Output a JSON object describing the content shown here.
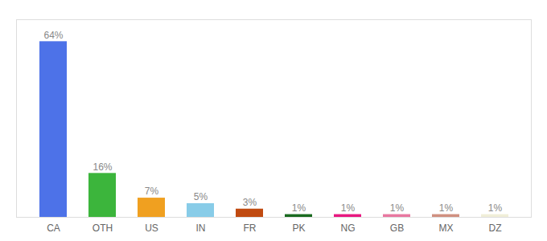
{
  "chart_data": {
    "type": "bar",
    "categories": [
      "CA",
      "OTH",
      "US",
      "IN",
      "FR",
      "PK",
      "NG",
      "GB",
      "MX",
      "DZ"
    ],
    "values": [
      64,
      16,
      7,
      5,
      3,
      1,
      1,
      1,
      1,
      1
    ],
    "value_labels": [
      "64%",
      "16%",
      "7%",
      "5%",
      "3%",
      "1%",
      "1%",
      "1%",
      "1%",
      "1%"
    ],
    "colors": [
      "#4d72e8",
      "#3cb53c",
      "#f0a020",
      "#88cce8",
      "#c04a10",
      "#1a6a20",
      "#e81880",
      "#e878a0",
      "#d09080",
      "#f0eed8"
    ],
    "ylim": [
      0,
      72
    ],
    "grid": false,
    "data_labels": true,
    "tick_labels": "x"
  }
}
